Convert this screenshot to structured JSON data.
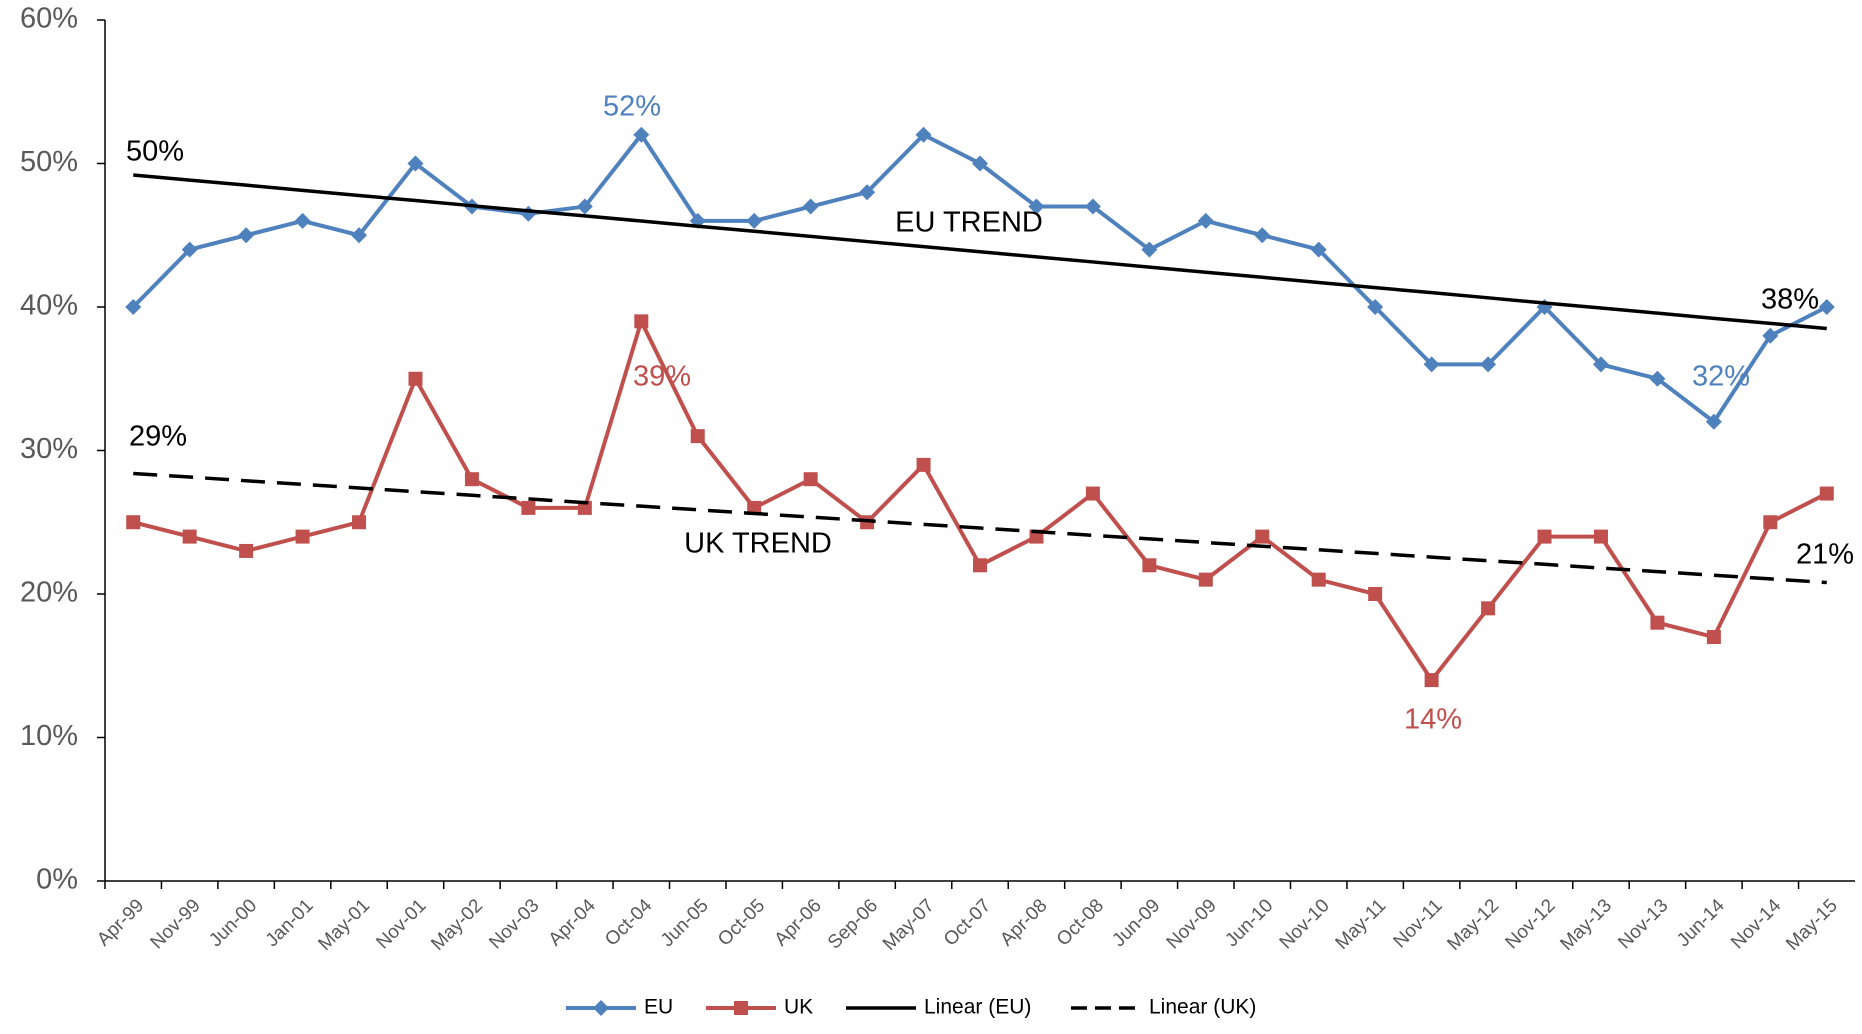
{
  "chart_data": {
    "type": "line",
    "categories": [
      "Apr-99",
      "Nov-99",
      "Jun-00",
      "Jan-01",
      "May-01",
      "Nov-01",
      "May-02",
      "Nov-03",
      "Apr-04",
      "Oct-04",
      "Jun-05",
      "Oct-05",
      "Apr-06",
      "Sep-06",
      "May-07",
      "Oct-07",
      "Apr-08",
      "Oct-08",
      "Jun-09",
      "Nov-09",
      "Jun-10",
      "Nov-10",
      "May-11",
      "Nov-11",
      "May-12",
      "Nov-12",
      "May-13",
      "Nov-13",
      "Jun-14",
      "Nov-14",
      "May-15"
    ],
    "series": [
      {
        "name": "EU",
        "color": "#4f81bd",
        "marker": "diamond",
        "values": [
          40,
          44,
          45,
          46,
          45,
          50,
          47,
          46.5,
          47,
          52,
          46,
          46,
          47,
          48,
          52,
          50,
          47,
          47,
          44,
          46,
          45,
          44,
          40,
          36,
          36,
          40,
          36,
          35,
          32,
          38,
          40
        ]
      },
      {
        "name": "UK",
        "color": "#c0504d",
        "marker": "square",
        "values": [
          25,
          24,
          23,
          24,
          25,
          35,
          28,
          26,
          26,
          39,
          31,
          26,
          28,
          25,
          29,
          22,
          24,
          27,
          22,
          21,
          24,
          21,
          20,
          14,
          19,
          24,
          24,
          18,
          17,
          25,
          27
        ]
      },
      {
        "name": "Linear (EU)",
        "color": "#000000",
        "dash": false,
        "values": [
          49.2,
          48.84,
          48.49,
          48.13,
          47.77,
          47.42,
          47.06,
          46.7,
          46.35,
          45.99,
          45.63,
          45.28,
          44.92,
          44.56,
          44.21,
          43.85,
          43.49,
          43.14,
          42.78,
          42.42,
          42.07,
          41.71,
          41.35,
          41.0,
          40.64,
          40.28,
          39.93,
          39.57,
          39.21,
          38.86,
          38.5
        ]
      },
      {
        "name": "Linear (UK)",
        "color": "#000000",
        "dash": true,
        "values": [
          28.4,
          28.15,
          27.89,
          27.64,
          27.39,
          27.13,
          26.88,
          26.63,
          26.37,
          26.12,
          25.87,
          25.61,
          25.36,
          25.11,
          24.85,
          24.6,
          24.35,
          24.09,
          23.84,
          23.59,
          23.33,
          23.08,
          22.83,
          22.57,
          22.32,
          22.07,
          21.81,
          21.56,
          21.31,
          21.05,
          20.8
        ]
      }
    ],
    "ylim": [
      0,
      60
    ],
    "yticks": [
      {
        "value": 0,
        "label": "0%"
      },
      {
        "value": 10,
        "label": "10%"
      },
      {
        "value": 20,
        "label": "20%"
      },
      {
        "value": 30,
        "label": "30%"
      },
      {
        "value": 40,
        "label": "40%"
      },
      {
        "value": 50,
        "label": "50%"
      },
      {
        "value": 60,
        "label": "60%"
      }
    ],
    "annotations": [
      {
        "text": "52%",
        "color": "#4f81bd"
      },
      {
        "text": "39%",
        "color": "#c0504d"
      },
      {
        "text": "14%",
        "color": "#c0504d"
      },
      {
        "text": "32%",
        "color": "#4f81bd"
      },
      {
        "text": "50%",
        "color": "#000000"
      },
      {
        "text": "29%",
        "color": "#000000"
      },
      {
        "text": "38%",
        "color": "#000000"
      },
      {
        "text": "21%",
        "color": "#000000"
      },
      {
        "text": "EU TREND",
        "color": "#000000"
      },
      {
        "text": "UK TREND",
        "color": "#000000"
      }
    ],
    "legend": "bottom"
  }
}
